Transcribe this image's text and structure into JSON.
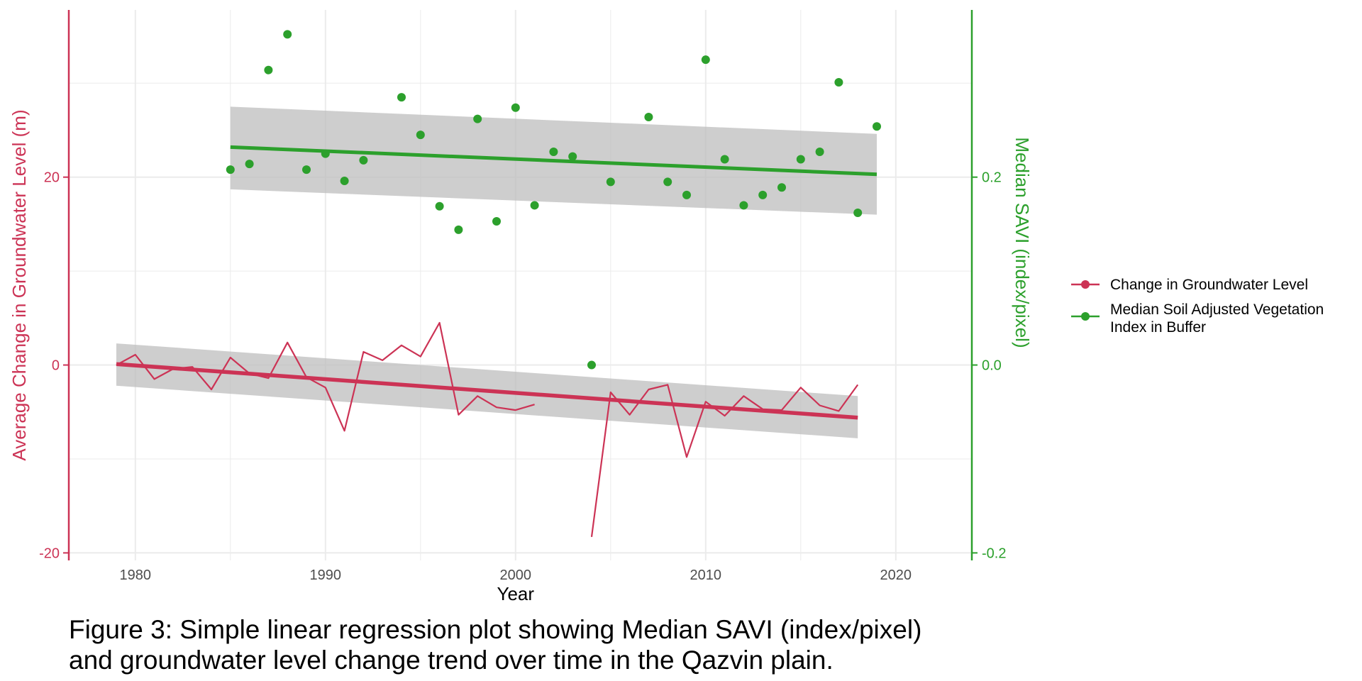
{
  "chart_data": {
    "type": "line",
    "title": "",
    "xlabel": "Year",
    "ylabel_left": "Average Change in Groundwater Level (m)",
    "ylabel_right": "Median SAVI (index/pixel)",
    "xlim": [
      1976.5,
      2024
    ],
    "ylim_left": [
      -20.8,
      37.8
    ],
    "ylim_right": [
      -0.208,
      0.378
    ],
    "x_ticks": [
      1980,
      1990,
      2000,
      2010,
      2020
    ],
    "y_ticks_left": [
      -20,
      0,
      20
    ],
    "y_ticks_right": [
      -0.2,
      0.0,
      0.2
    ],
    "y_tick_labels_left": [
      "-20",
      "0",
      "20"
    ],
    "y_tick_labels_right": [
      "-0.2",
      "0.0",
      "0.2"
    ],
    "grid": true,
    "legend_position": "right",
    "colors": {
      "groundwater": "#cc3355",
      "savi": "#2ca02c",
      "ribbon": "#bebebe",
      "grid": "#ebebeb"
    },
    "series": [
      {
        "name": "Change in Groundwater Level",
        "kind": "line",
        "axis": "left",
        "x": [
          1979,
          1980,
          1981,
          1982,
          1983,
          1984,
          1985,
          1986,
          1987,
          1988,
          1989,
          1990,
          1991,
          1992,
          1993,
          1994,
          1995,
          1996,
          1997,
          1998,
          1999,
          2000,
          2001,
          null,
          2004,
          2005,
          2006,
          2007,
          2008,
          2009,
          2010,
          2011,
          2012,
          2013,
          2014,
          2015,
          2016,
          2017,
          2018
        ],
        "values": [
          0.0,
          1.1,
          -1.5,
          -0.4,
          -0.2,
          -2.6,
          0.8,
          -0.9,
          -1.4,
          2.4,
          -1.3,
          -2.4,
          -7.0,
          1.4,
          0.5,
          2.1,
          0.9,
          4.5,
          -5.3,
          -3.3,
          -4.5,
          -4.8,
          -4.2,
          null,
          -18.3,
          -2.9,
          -5.3,
          -2.6,
          -2.1,
          -9.8,
          -3.9,
          -5.4,
          -3.3,
          -4.7,
          -4.8,
          -2.4,
          -4.3,
          -4.9,
          -2.1
        ],
        "trend": {
          "x": [
            1979,
            2018
          ],
          "values": [
            0.1,
            -5.6
          ],
          "ribbon_lower": [
            -2.2,
            -7.8
          ],
          "ribbon_upper": [
            2.3,
            -3.3
          ]
        }
      },
      {
        "name": "Median Soil Adjusted Vegetation Index in Buffer",
        "kind": "scatter",
        "axis": "right",
        "x": [
          1985,
          1986,
          1987,
          1988,
          1989,
          1990,
          1991,
          1992,
          1994,
          1995,
          1996,
          1997,
          1998,
          1999,
          2000,
          2001,
          2002,
          2003,
          2004,
          2005,
          2007,
          2008,
          2009,
          2010,
          2011,
          2012,
          2013,
          2014,
          2015,
          2016,
          2017,
          2018,
          2019
        ],
        "values": [
          0.208,
          0.214,
          0.314,
          0.352,
          0.208,
          0.225,
          0.196,
          0.218,
          0.285,
          0.245,
          0.169,
          0.144,
          0.262,
          0.153,
          0.274,
          0.17,
          0.227,
          0.222,
          0.0,
          0.195,
          0.264,
          0.195,
          0.181,
          0.325,
          0.219,
          0.17,
          0.181,
          0.189,
          0.219,
          0.227,
          0.301,
          0.162,
          0.254
        ],
        "trend": {
          "x": [
            1985,
            2019
          ],
          "values": [
            0.232,
            0.203
          ],
          "ribbon_lower": [
            0.187,
            0.16
          ],
          "ribbon_upper": [
            0.275,
            0.246
          ]
        }
      }
    ]
  },
  "caption": {
    "line1": "Figure 3: Simple linear regression plot showing Median SAVI (index/pixel)",
    "line2": "and groundwater level change trend over time in the Qazvin plain."
  }
}
